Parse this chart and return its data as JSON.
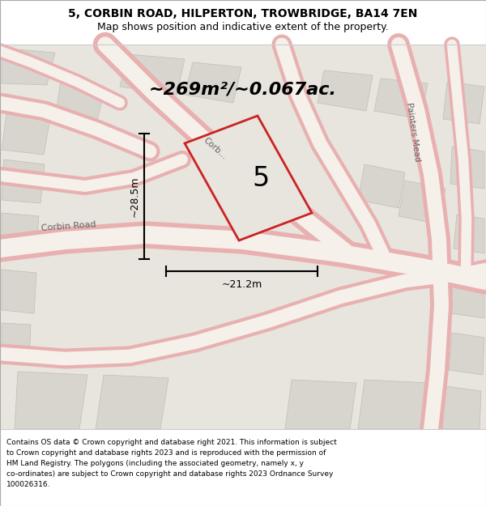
{
  "title_line1": "5, CORBIN ROAD, HILPERTON, TROWBRIDGE, BA14 7EN",
  "title_line2": "Map shows position and indicative extent of the property.",
  "area_text": "~269m²/~0.067ac.",
  "property_number": "5",
  "dim_vertical": "~28.5m",
  "dim_horizontal": "~21.2m",
  "footer_lines": [
    "Contains OS data © Crown copyright and database right 2021. This information is subject",
    "to Crown copyright and database rights 2023 and is reproduced with the permission of",
    "HM Land Registry. The polygons (including the associated geometry, namely x, y",
    "co-ordinates) are subject to Crown copyright and database rights 2023 Ordnance Survey",
    "100026316."
  ],
  "map_bg": "#e8e4de",
  "property_outline": "#cc2222",
  "road_outer": "#e8b0b0",
  "road_inner": "#f5f0ea",
  "block_color": "#d8d4ce",
  "block_edge": "#c0bcb6",
  "label_color": "#666666",
  "dim_color": "#000000"
}
